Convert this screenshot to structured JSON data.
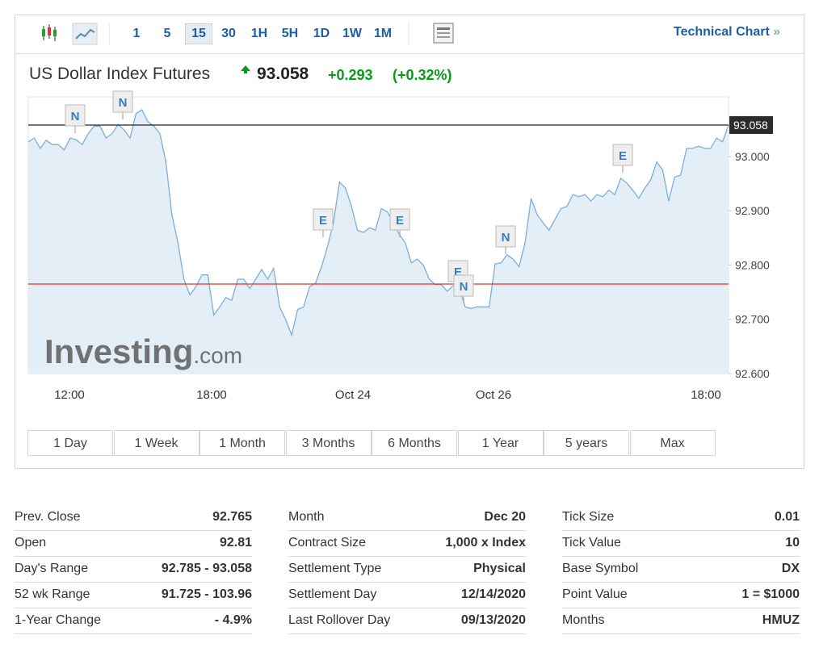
{
  "toolbar": {
    "intervals": [
      "1",
      "5",
      "15",
      "30",
      "1H",
      "5H",
      "1D",
      "1W",
      "1M"
    ],
    "link": "Technical Chart",
    "link_arrow": "»"
  },
  "header": {
    "title": "US Dollar Index Futures",
    "price": "93.058",
    "change": "+0.293",
    "change_pct": "(+0.32%)"
  },
  "chart": {
    "type": "line",
    "color": "#7bafd9",
    "fill": "#e4eef7",
    "values": [
      93.027,
      93.034,
      93.015,
      93.03,
      93.022,
      93.022,
      93.012,
      93.034,
      93.031,
      93.022,
      93.042,
      93.056,
      93.056,
      93.034,
      93.042,
      93.059,
      93.049,
      93.034,
      93.079,
      93.086,
      93.064,
      93.056,
      93.042,
      92.99,
      92.893,
      92.841,
      92.774,
      92.745,
      92.76,
      92.782,
      92.782,
      92.708,
      92.723,
      92.74,
      92.735,
      92.774,
      92.774,
      92.757,
      92.774,
      92.792,
      92.774,
      92.794,
      92.723,
      92.7,
      92.671,
      92.718,
      92.723,
      92.76,
      92.767,
      92.797,
      92.834,
      92.878,
      92.953,
      92.942,
      92.908,
      92.864,
      92.86,
      92.869,
      92.864,
      92.904,
      92.898,
      92.878,
      92.856,
      92.841,
      92.804,
      92.811,
      92.8,
      92.774,
      92.764,
      92.764,
      92.752,
      92.762,
      92.759,
      92.723,
      92.72,
      92.723,
      92.723,
      92.723,
      92.802,
      92.804,
      92.819,
      92.811,
      92.797,
      92.841,
      92.923,
      92.893,
      92.878,
      92.864,
      92.884,
      92.904,
      92.908,
      92.93,
      92.926,
      92.93,
      92.918,
      92.93,
      92.926,
      92.938,
      92.93,
      92.96,
      92.951,
      92.938,
      92.923,
      92.942,
      92.957,
      92.99,
      92.975,
      92.918,
      92.962,
      92.966,
      93.015,
      93.015,
      93.019,
      93.015,
      93.015,
      93.034,
      93.027,
      93.058
    ],
    "ylim": [
      92.6,
      93.11
    ],
    "yticks": [
      {
        "value": 92.6,
        "label": "92.600"
      },
      {
        "value": 92.7,
        "label": "92.700"
      },
      {
        "value": 92.8,
        "label": "92.800"
      },
      {
        "value": 92.9,
        "label": "92.900"
      },
      {
        "value": 93.0,
        "label": "93.000"
      }
    ],
    "xticks": [
      "12:00",
      "18:00",
      "Oct 24",
      "Oct 26",
      "18:00"
    ],
    "last": {
      "value": 93.058,
      "label": "93.058"
    },
    "prev_close": 92.765,
    "events": [
      "N",
      "N",
      "E",
      "E",
      "E",
      "N",
      "N",
      "E"
    ],
    "watermark": "Investing",
    "watermark_suffix": ".com"
  },
  "ranges": [
    "1 Day",
    "1 Week",
    "1 Month",
    "3 Months",
    "6 Months",
    "1 Year",
    "5 years",
    "Max"
  ],
  "table": [
    [
      [
        "Prev. Close",
        "92.765"
      ],
      [
        "Open",
        "92.81"
      ],
      [
        "Day's Range",
        "92.785 - 93.058"
      ],
      [
        "52 wk Range",
        "91.725 - 103.96"
      ],
      [
        "1-Year Change",
        "- 4.9%"
      ]
    ],
    [
      [
        "Month",
        "Dec 20"
      ],
      [
        "Contract Size",
        "1,000 x Index"
      ],
      [
        "Settlement Type",
        "Physical"
      ],
      [
        "Settlement Day",
        "12/14/2020"
      ],
      [
        "Last Rollover Day",
        "09/13/2020"
      ]
    ],
    [
      [
        "Tick Size",
        "0.01"
      ],
      [
        "Tick Value",
        "10"
      ],
      [
        "Base Symbol",
        "DX"
      ],
      [
        "Point Value",
        "1 = $1000"
      ],
      [
        "Months",
        "HMUZ"
      ]
    ]
  ]
}
